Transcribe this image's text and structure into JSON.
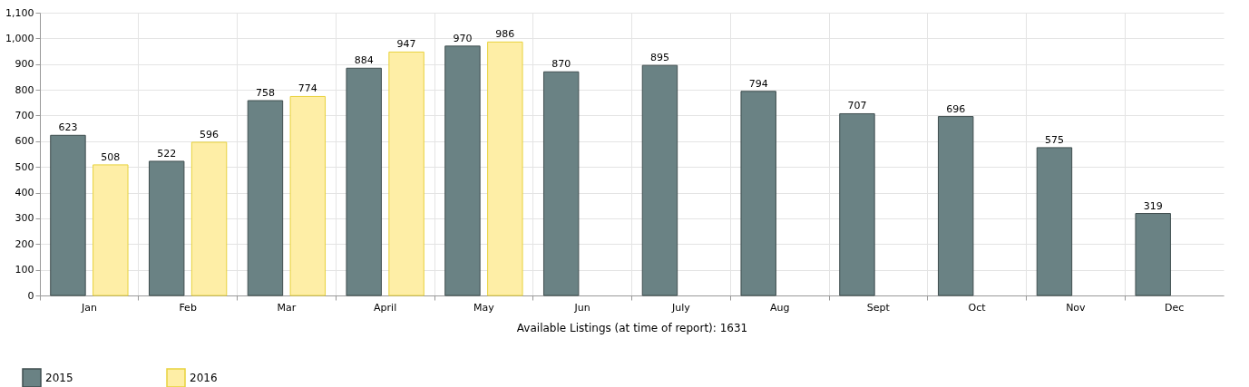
{
  "chart_data": {
    "type": "bar",
    "xlabel": "Available Listings (at time of report): 1631",
    "categories": [
      "Jan",
      "Feb",
      "Mar",
      "April",
      "May",
      "Jun",
      "July",
      "Aug",
      "Sept",
      "Oct",
      "Nov",
      "Dec"
    ],
    "series": [
      {
        "name": "2015",
        "color": "#6a8284",
        "values": [
          623,
          522,
          758,
          884,
          970,
          870,
          895,
          794,
          707,
          696,
          575,
          319
        ]
      },
      {
        "name": "2016",
        "color": "#feeea6",
        "values": [
          508,
          596,
          774,
          947,
          986,
          null,
          null,
          null,
          null,
          null,
          null,
          null
        ]
      }
    ],
    "ylim": [
      0,
      1100
    ],
    "yticks": [
      {
        "value": 0,
        "label": "0"
      },
      {
        "value": 100,
        "label": "100"
      },
      {
        "value": 200,
        "label": "200"
      },
      {
        "value": 300,
        "label": "300"
      },
      {
        "value": 400,
        "label": "400"
      },
      {
        "value": 500,
        "label": "500"
      },
      {
        "value": 600,
        "label": "600"
      },
      {
        "value": 700,
        "label": "700"
      },
      {
        "value": 800,
        "label": "800"
      },
      {
        "value": 900,
        "label": "900"
      },
      {
        "value": 1000,
        "label": "1,000"
      },
      {
        "value": 1100,
        "label": "1,100"
      }
    ],
    "grid": true,
    "legend": "bottom left",
    "data_labels": true
  }
}
